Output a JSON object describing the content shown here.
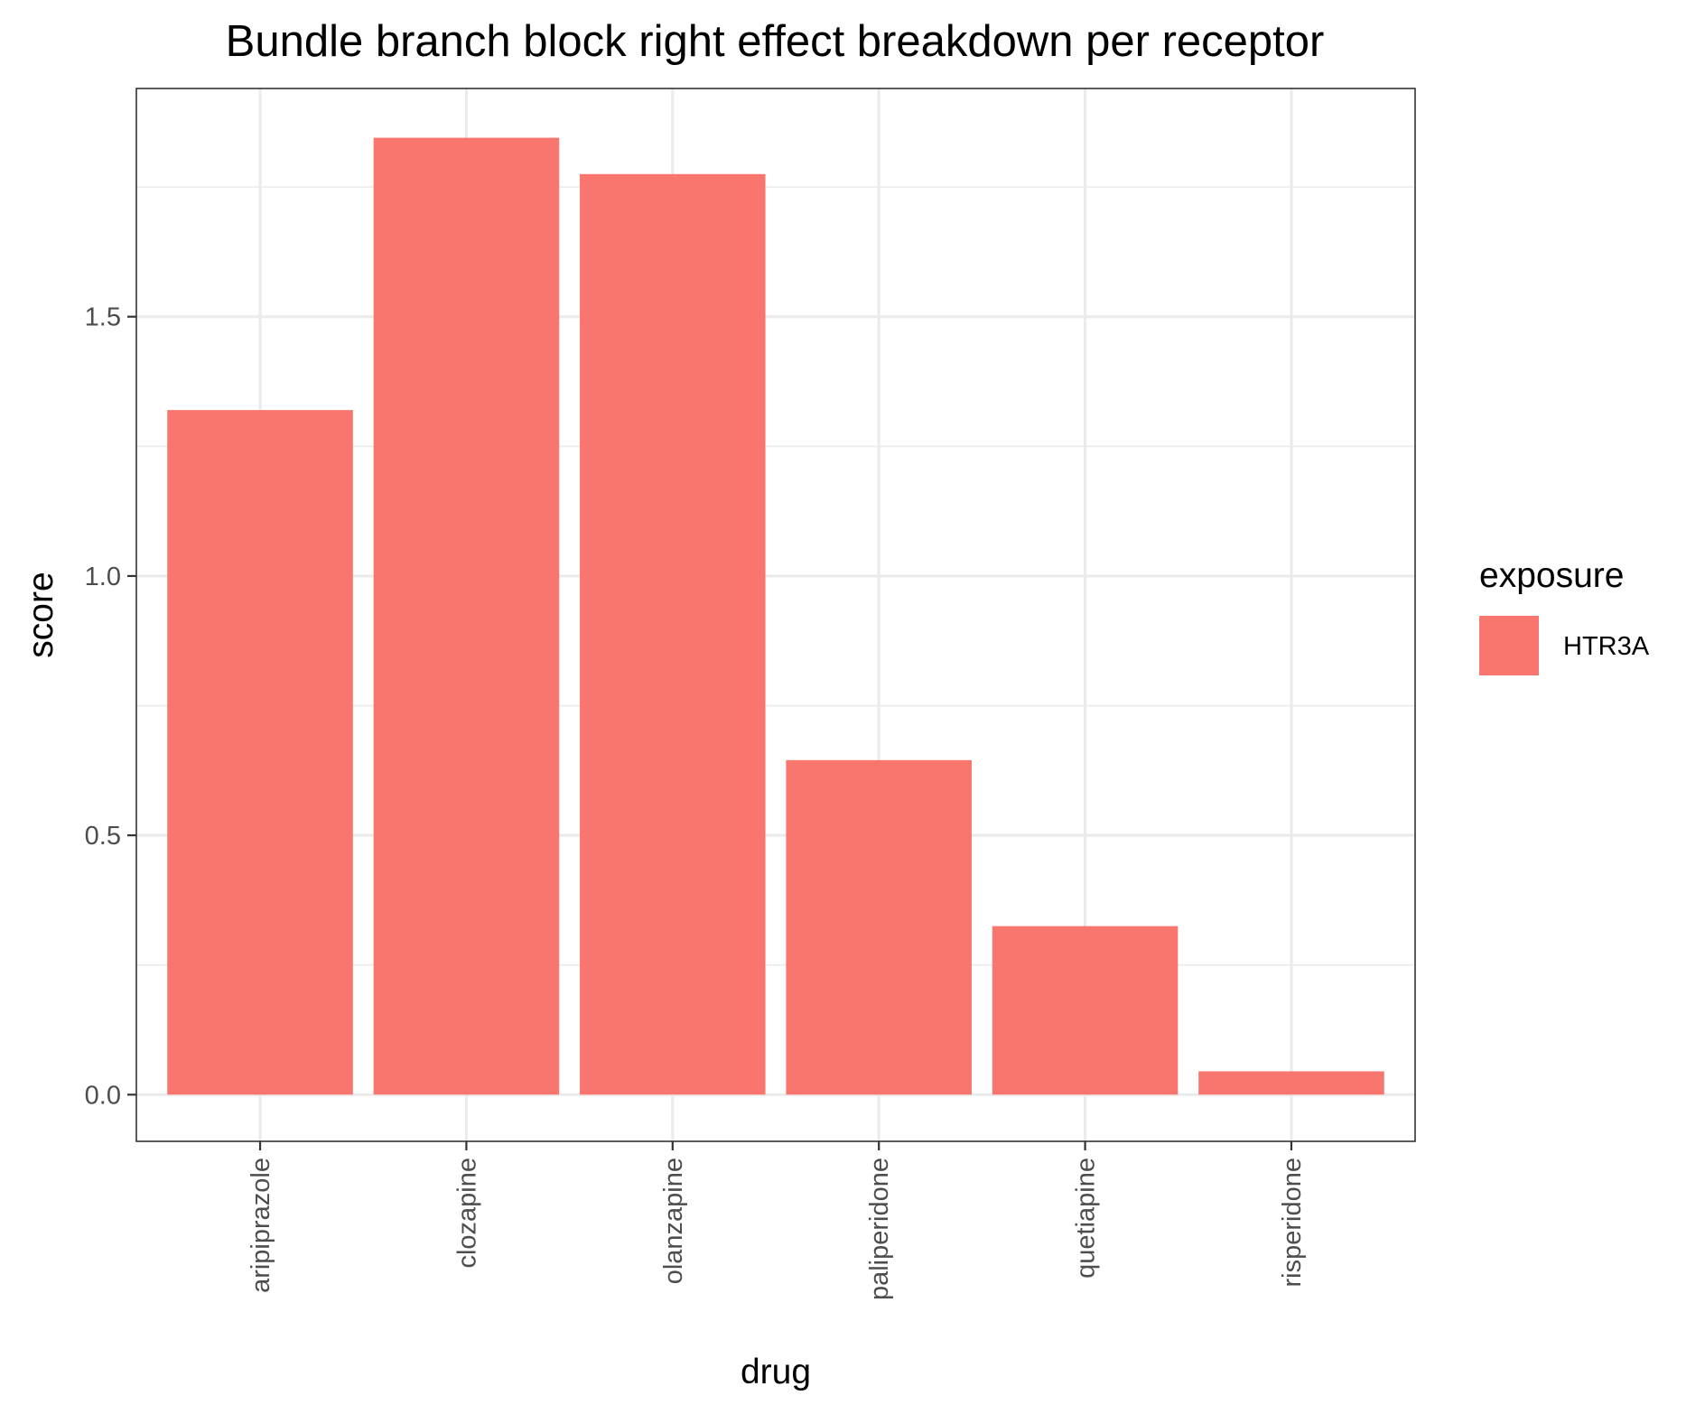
{
  "chart_data": {
    "type": "bar",
    "title": "Bundle branch block right effect breakdown per receptor",
    "xlabel": "drug",
    "ylabel": "score",
    "categories": [
      "aripiprazole",
      "clozapine",
      "olanzapine",
      "paliperidone",
      "quetiapine",
      "risperidone"
    ],
    "series": [
      {
        "name": "HTR3A",
        "values": [
          1.32,
          1.845,
          1.775,
          0.645,
          0.325,
          0.045
        ]
      }
    ],
    "ylim": [
      -0.09,
      1.94
    ],
    "yticks": [
      0.0,
      0.5,
      1.0,
      1.5
    ],
    "ytick_labels": [
      "0.0",
      "0.5",
      "1.0",
      "1.5"
    ],
    "grid": true,
    "legend": {
      "title": "exposure",
      "position": "right"
    },
    "colors": {
      "bar": "#f8766d",
      "panel_border": "#333333",
      "grid": "#ebebeb",
      "tick_text": "#4d4d4d"
    }
  }
}
